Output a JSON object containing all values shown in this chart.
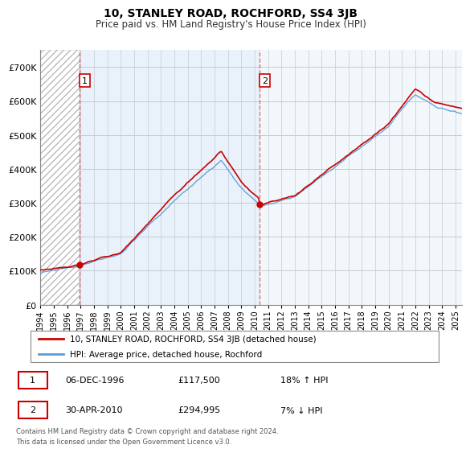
{
  "title": "10, STANLEY ROAD, ROCHFORD, SS4 3JB",
  "subtitle": "Price paid vs. HM Land Registry's House Price Index (HPI)",
  "ylim": [
    0,
    750000
  ],
  "yticks": [
    0,
    100000,
    200000,
    300000,
    400000,
    500000,
    600000,
    700000
  ],
  "xlim_left": 1994,
  "xlim_right": 2025.5,
  "sale1_date_x": 1996.92,
  "sale1_price": 117500,
  "sale1_label": "1",
  "sale2_date_x": 2010.33,
  "sale2_price": 294995,
  "sale2_label": "2",
  "hpi_line_color": "#5b9bd5",
  "price_line_color": "#cc0000",
  "sale_marker_color": "#cc0000",
  "annotation_box_color": "#cc0000",
  "grid_color": "#cccccc",
  "light_blue_fill": "#ddeeff",
  "hatch_color": "#bbbbbb",
  "background_color": "#ffffff",
  "legend_label1": "10, STANLEY ROAD, ROCHFORD, SS4 3JB (detached house)",
  "legend_label2": "HPI: Average price, detached house, Rochford",
  "table_row1": [
    "1",
    "06-DEC-1996",
    "£117,500",
    "18% ↑ HPI"
  ],
  "table_row2": [
    "2",
    "30-APR-2010",
    "£294,995",
    "7% ↓ HPI"
  ],
  "footer": "Contains HM Land Registry data © Crown copyright and database right 2024.\nThis data is licensed under the Open Government Licence v3.0."
}
